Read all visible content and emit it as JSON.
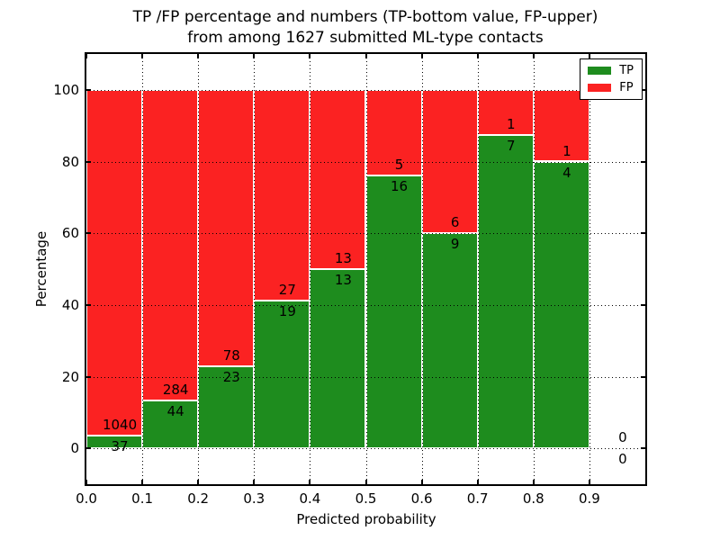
{
  "chart_data": {
    "type": "bar",
    "stacked": true,
    "normalized_to_percent": 100,
    "title_line1": "TP /FP percentage and numbers (TP-bottom value, FP-upper)",
    "title_line2": "from among 1627 submitted ML-type contacts",
    "xlabel": "Predicted probability",
    "ylabel": "Percentage",
    "xlim": [
      0.0,
      1.0
    ],
    "ylim": [
      -10,
      110
    ],
    "x_ticks": [
      "0.0",
      "0.1",
      "0.2",
      "0.3",
      "0.4",
      "0.5",
      "0.6",
      "0.7",
      "0.8",
      "0.9"
    ],
    "y_ticks": [
      0,
      20,
      40,
      60,
      80,
      100
    ],
    "grid": "dotted black, horizontal and vertical, drawn above bars",
    "total_contacts": 1627,
    "legend": {
      "position": "upper right",
      "entries": [
        {
          "label": "TP",
          "color": "#1e8c1e"
        },
        {
          "label": "FP",
          "color": "#fb2222"
        }
      ]
    },
    "bins": [
      {
        "x_start": 0.0,
        "x_end": 0.1,
        "tp": 37,
        "fp": 1040
      },
      {
        "x_start": 0.1,
        "x_end": 0.2,
        "tp": 44,
        "fp": 284
      },
      {
        "x_start": 0.2,
        "x_end": 0.3,
        "tp": 23,
        "fp": 78
      },
      {
        "x_start": 0.3,
        "x_end": 0.4,
        "tp": 19,
        "fp": 27
      },
      {
        "x_start": 0.4,
        "x_end": 0.5,
        "tp": 13,
        "fp": 13
      },
      {
        "x_start": 0.5,
        "x_end": 0.6,
        "tp": 16,
        "fp": 5
      },
      {
        "x_start": 0.6,
        "x_end": 0.7,
        "tp": 9,
        "fp": 6
      },
      {
        "x_start": 0.7,
        "x_end": 0.8,
        "tp": 7,
        "fp": 1
      },
      {
        "x_start": 0.8,
        "x_end": 0.9,
        "tp": 4,
        "fp": 1
      },
      {
        "x_start": 0.9,
        "x_end": 1.0,
        "tp": 0,
        "fp": 0
      }
    ]
  }
}
